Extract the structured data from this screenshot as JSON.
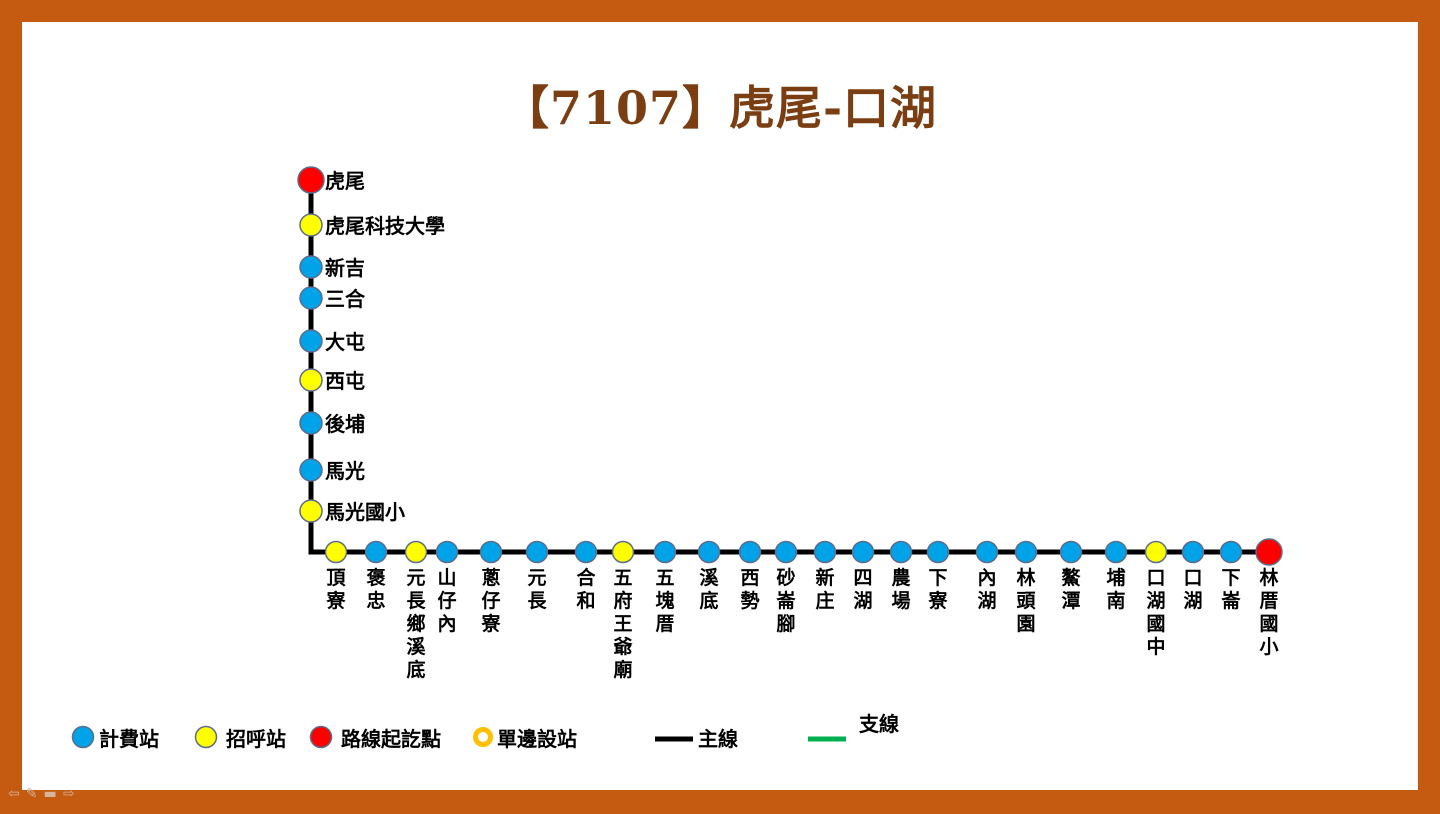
{
  "title": "【7107】虎尾-口湖",
  "colors": {
    "border": "#c55a11",
    "title": "#7a3e12",
    "fare_stop": "#00a2e8",
    "flag_stop": "#ffff00",
    "terminal": "#ff0000",
    "one_side_ring": "#ffc000",
    "main_line": "#000000",
    "branch_line": "#00b050",
    "stop_outline": "#5b6d8c"
  },
  "vertical_stops": [
    {
      "name": "虎尾",
      "type": "terminal"
    },
    {
      "name": "虎尾科技大學",
      "type": "flag"
    },
    {
      "name": "新吉",
      "type": "fare"
    },
    {
      "name": "三合",
      "type": "fare"
    },
    {
      "name": "大屯",
      "type": "fare"
    },
    {
      "name": "西屯",
      "type": "flag"
    },
    {
      "name": "後埔",
      "type": "fare"
    },
    {
      "name": "馬光",
      "type": "fare"
    },
    {
      "name": "馬光國小",
      "type": "flag"
    }
  ],
  "horizontal_stops": [
    {
      "name": "頂寮",
      "type": "flag"
    },
    {
      "name": "褒忠",
      "type": "fare"
    },
    {
      "name": "元長鄉溪底",
      "type": "flag"
    },
    {
      "name": "山仔內",
      "type": "fare"
    },
    {
      "name": "蔥仔寮",
      "type": "fare"
    },
    {
      "name": "元長",
      "type": "fare"
    },
    {
      "name": "合和",
      "type": "fare"
    },
    {
      "name": "五府王爺廟",
      "type": "flag"
    },
    {
      "name": "五塊厝",
      "type": "fare"
    },
    {
      "name": "溪底",
      "type": "fare"
    },
    {
      "name": "西勢",
      "type": "fare"
    },
    {
      "name": "砂崙腳",
      "type": "fare"
    },
    {
      "name": "新庄",
      "type": "fare"
    },
    {
      "name": "四湖",
      "type": "fare"
    },
    {
      "name": "農場",
      "type": "fare"
    },
    {
      "name": "下寮",
      "type": "fare"
    },
    {
      "name": "內湖",
      "type": "fare"
    },
    {
      "name": "林頭園",
      "type": "fare"
    },
    {
      "name": "鰲潭",
      "type": "fare"
    },
    {
      "name": "埔南",
      "type": "fare"
    },
    {
      "name": "口湖國中",
      "type": "flag"
    },
    {
      "name": "口湖",
      "type": "fare"
    },
    {
      "name": "下崙",
      "type": "fare"
    },
    {
      "name": "林厝國小",
      "type": "terminal"
    }
  ],
  "legend": [
    {
      "key": "fare",
      "label": "計費站",
      "symbol": "fare"
    },
    {
      "key": "flag",
      "label": "招呼站",
      "symbol": "flag"
    },
    {
      "key": "terminal",
      "label": "路線起訖點",
      "symbol": "terminal"
    },
    {
      "key": "one_side",
      "label": "單邊設站",
      "symbol": "one_side"
    },
    {
      "key": "main",
      "label": "主線",
      "symbol": "main_line"
    },
    {
      "key": "branch",
      "label": "支線",
      "symbol": "branch_line"
    }
  ],
  "nav_icons": [
    "back-arrow-icon",
    "pen-icon",
    "menu-icon",
    "forward-arrow-icon"
  ]
}
